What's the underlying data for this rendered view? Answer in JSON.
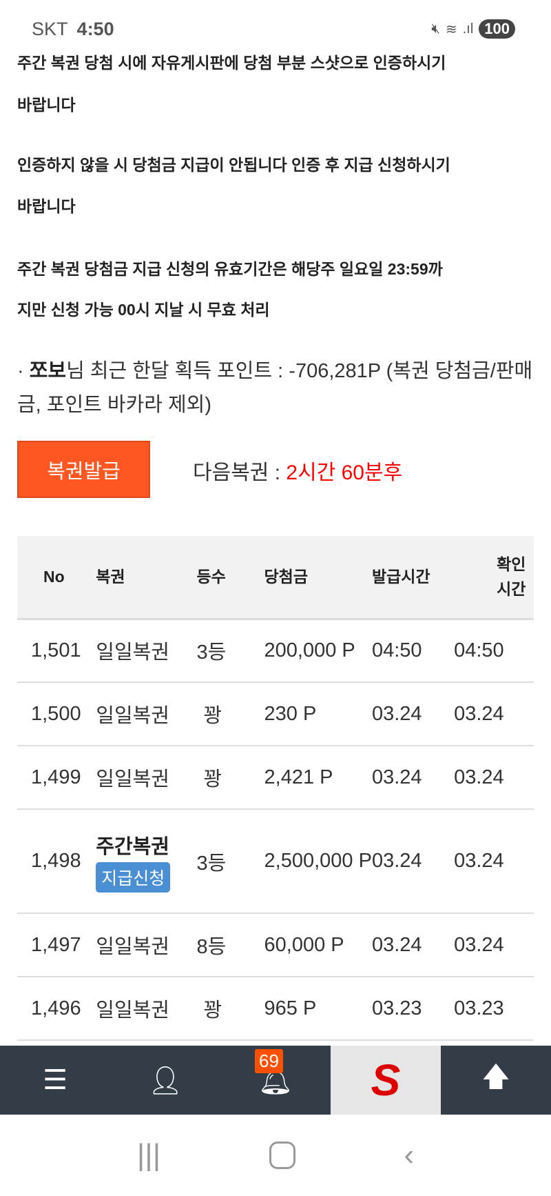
{
  "status_bar": {
    "carrier": "SKT",
    "time": "4:50",
    "battery": "100"
  },
  "notices": [
    "주간 복권 당첨 시에 자유게시판에 당첨 부분 스샷으로 인증하시기",
    "바랍니다",
    "인증하지 않을 시 당첨금 지급이 안됩니다 인증 후 지급 신청하시기",
    "바랍니다",
    "주간 복권 당첨금 지급 신청의 유효기간은 해당주 일요일 23:59까",
    "지만 신청 가능 00시 지날 시 무효 처리"
  ],
  "points": {
    "prefix": "· ",
    "user": "쪼보",
    "text": "님 최근 한달 획득 포인트 : -706,281P (복권 당첨금/판매금, 포인트 바카라 제외)"
  },
  "issue_button": "복권발급",
  "next": {
    "label": "다음복권 : ",
    "value": "2시간 60분후"
  },
  "table": {
    "headers": [
      "No",
      "복권",
      "등수",
      "당첨금",
      "발급시간",
      "확인시간"
    ],
    "rows": [
      {
        "no": "1,501",
        "type": "일일복권",
        "rank": "3등",
        "prize": "200,000 P",
        "issued": "04:50",
        "checked": "04:50"
      },
      {
        "no": "1,500",
        "type": "일일복권",
        "rank": "꽝",
        "prize": "230 P",
        "issued": "03.24",
        "checked": "03.24"
      },
      {
        "no": "1,499",
        "type": "일일복권",
        "rank": "꽝",
        "prize": "2,421 P",
        "issued": "03.24",
        "checked": "03.24"
      },
      {
        "no": "1,498",
        "type": "주간복권",
        "pay_button": "지급신청",
        "rank": "3등",
        "prize": "2,500,000 P",
        "issued": "03.24",
        "checked": "03.24"
      },
      {
        "no": "1,497",
        "type": "일일복권",
        "rank": "8등",
        "prize": "60,000 P",
        "issued": "03.24",
        "checked": "03.24"
      },
      {
        "no": "1,496",
        "type": "일일복권",
        "rank": "꽝",
        "prize": "965 P",
        "issued": "03.23",
        "checked": "03.23"
      }
    ]
  },
  "bottom_nav": {
    "notification_count": "69",
    "logo": "S"
  },
  "colors": {
    "accent": "#ff5722",
    "countdown": "#ff0000",
    "pay_button": "#4a8fd4",
    "nav_bg": "#333d48"
  }
}
